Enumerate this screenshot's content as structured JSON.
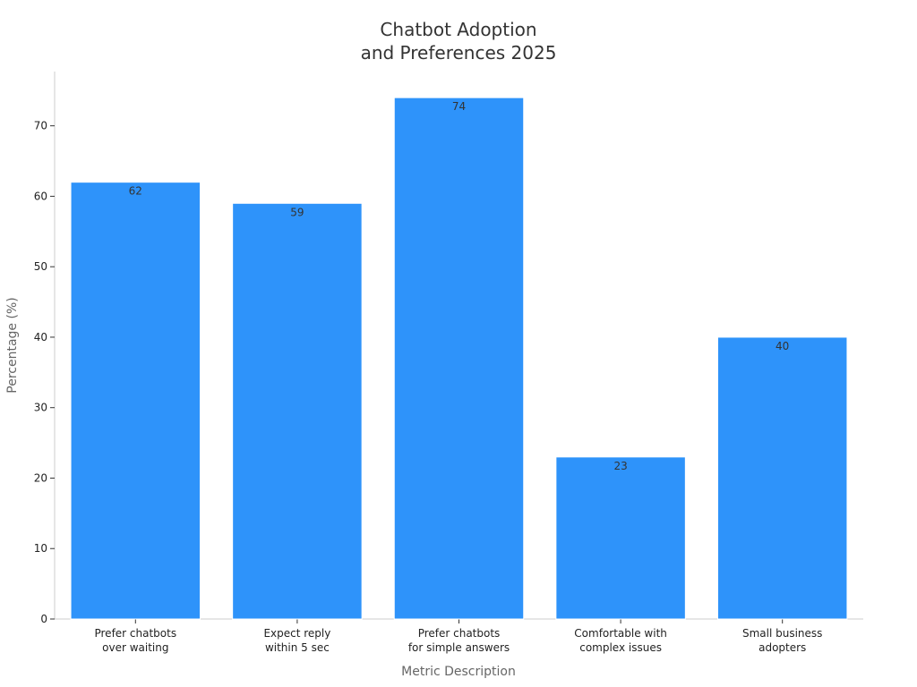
{
  "chart_data": {
    "type": "bar",
    "title": [
      "Chatbot Adoption",
      "and Preferences 2025"
    ],
    "xlabel": "Metric Description",
    "ylabel": "Percentage (%)",
    "categories": [
      [
        "Prefer chatbots",
        "over waiting"
      ],
      [
        "Expect reply",
        "within 5 sec"
      ],
      [
        "Prefer chatbots",
        "for simple answers"
      ],
      [
        "Comfortable with",
        "complex issues"
      ],
      [
        "Small business",
        "adopters"
      ]
    ],
    "values": [
      62,
      59,
      74,
      23,
      40
    ],
    "ylim": [
      0,
      77.7
    ],
    "yticks": [
      0,
      10,
      20,
      30,
      40,
      50,
      60,
      70
    ],
    "grid": false,
    "legend": "none",
    "bar_color": "#2e93fa",
    "bar_edge_color": "#ffffff",
    "axis_color": "#cccccc",
    "tick_color": "#333333"
  }
}
